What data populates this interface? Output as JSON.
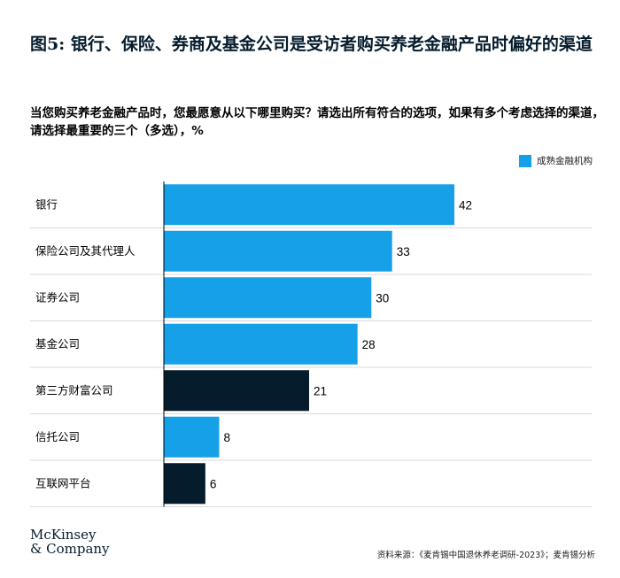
{
  "title": "图5: 银行、保险、券商及基金公司是受访者购买养老金融产品时偏好的渠道",
  "subtitle": "当您购买养老金融产品时，您最愿意从以下哪里购买？请选出所有符合的选项，如果有多个考虑选择的渠道，请选择最重要的三个（多选），%",
  "legend_label": "成熟金融机构",
  "colors": {
    "mature": "#15a0e8",
    "other": "#051c2c",
    "grid": "#d9d9d9",
    "axis": "#000000"
  },
  "logo": {
    "line1": "McKinsey",
    "line2": "& Company"
  },
  "source": "资料来源：《麦肯锡中国退休养老调研-2023》；麦肯锡分析",
  "chart_data": {
    "type": "bar",
    "orientation": "horizontal",
    "categories": [
      "银行",
      "保险公司及其代理人",
      "证券公司",
      "基金公司",
      "第三方财富公司",
      "信托公司",
      "互联网平台"
    ],
    "values": [
      42,
      33,
      30,
      28,
      21,
      8,
      6
    ],
    "mature_flags": [
      true,
      true,
      true,
      true,
      false,
      true,
      false
    ],
    "legend": {
      "series": [
        "成熟金融机构"
      ],
      "position": "top-right"
    },
    "xlim": [
      0,
      60
    ],
    "grid": "row-separators"
  }
}
